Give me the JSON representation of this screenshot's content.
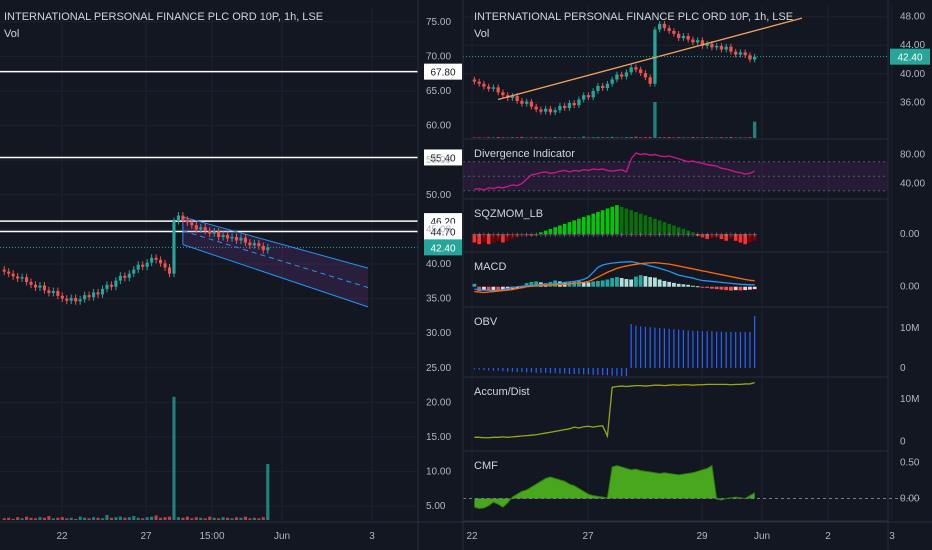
{
  "colors": {
    "background": "#131722",
    "grid": "#1e222d",
    "up": "#26a69a",
    "down": "#ef5350",
    "axis_text": "#b2b5be",
    "title_text": "#d1d4dc",
    "white": "#ffffff",
    "channel": "#2196f3",
    "trend": "#f0a060",
    "divergence": "#c2188b",
    "sqz_green": "#00c805",
    "sqz_dark_green": "#0a6e0a",
    "sqz_red": "#ff2d2d",
    "sqz_maroon": "#800000",
    "macd_line": "#2196f3",
    "signal_line": "#ff6d00",
    "obv": "#2962ff",
    "accum": "#9aa617",
    "cmf_fill": "#4caf1e",
    "price_label": "#26a69a"
  },
  "left_panel": {
    "title": "INTERNATIONAL PERSONAL FINANCE PLC ORD 10P, 1h, LSE",
    "subtitle": "Vol",
    "last_price_label": "42.40",
    "y_ticks": [
      "75.00",
      "70.00",
      "65.00",
      "60.00",
      "55.00",
      "50.00",
      "45.00",
      "40.00",
      "35.00",
      "30.00",
      "25.00",
      "20.00",
      "15.00",
      "10.00",
      "5.00"
    ],
    "x_ticks": [
      "22",
      "27",
      "15:00",
      "Jun",
      "3"
    ],
    "horizontal_levels": [
      {
        "value": 67.8,
        "label": "67.80"
      },
      {
        "value": 55.4,
        "label": "55.40"
      },
      {
        "value": 46.2,
        "label": "46.20"
      },
      {
        "value": 44.7,
        "label": "44.70"
      }
    ]
  },
  "right_panel": {
    "title": "INTERNATIONAL PERSONAL FINANCE PLC ORD 10P, 1h, LSE",
    "subtitle": "Vol",
    "last_price_label": "42.40",
    "x_ticks": [
      "22",
      "27",
      "29",
      "Jun",
      "2",
      "3"
    ],
    "panes": [
      {
        "name": "Price",
        "y_ticks": [
          "48.00",
          "44.00",
          "40.00",
          "36.00"
        ]
      },
      {
        "name": "Divergence Indicator",
        "y_ticks": [
          "80.00",
          "40.00"
        ]
      },
      {
        "name": "SQZMOM_LB",
        "y_ticks": [
          "0.00"
        ]
      },
      {
        "name": "MACD",
        "y_ticks": [
          "0.00"
        ]
      },
      {
        "name": "OBV",
        "y_ticks": [
          "10M",
          "0"
        ]
      },
      {
        "name": "Accum/Dist",
        "y_ticks": [
          "10M",
          "0"
        ]
      },
      {
        "name": "CMF",
        "y_ticks": [
          "0.50",
          "0.00"
        ]
      }
    ]
  },
  "chart_data": [
    {
      "type": "candlestick",
      "title": "INTERNATIONAL PERSONAL FINANCE PLC ORD 10P, 1h, LSE",
      "ylim": [
        3,
        77
      ],
      "last_price": 42.4,
      "close": [
        38.9,
        38.6,
        38.2,
        37.9,
        38.1,
        37.4,
        37.0,
        36.6,
        36.9,
        36.2,
        35.8,
        36.1,
        35.4,
        35.0,
        34.7,
        35.1,
        34.6,
        34.9,
        35.5,
        35.2,
        35.9,
        35.6,
        36.4,
        37.0,
        36.7,
        37.6,
        38.3,
        38.0,
        38.6,
        39.2,
        39.9,
        39.6,
        40.2,
        40.9,
        40.6,
        40.1,
        39.5,
        38.6,
        46.2,
        47.0,
        46.4,
        46.0,
        45.6,
        45.0,
        45.3,
        44.8,
        44.4,
        44.7,
        43.9,
        44.2,
        43.7,
        43.9,
        43.4,
        43.8,
        43.1,
        42.7,
        43.0,
        42.6,
        42.0,
        42.4
      ],
      "volume": [
        0.3,
        0.4,
        0.2,
        0.5,
        0.3,
        0.6,
        0.4,
        0.3,
        0.5,
        0.4,
        0.7,
        0.3,
        0.4,
        0.5,
        0.3,
        0.4,
        0.2,
        0.6,
        0.4,
        0.3,
        0.5,
        0.4,
        0.3,
        0.9,
        0.4,
        0.5,
        0.6,
        0.4,
        0.5,
        0.7,
        0.4,
        0.3,
        0.5,
        0.6,
        0.8,
        0.4,
        0.5,
        0.6,
        22.0,
        0.5,
        0.4,
        0.6,
        0.3,
        0.5,
        0.4,
        0.3,
        0.6,
        0.4,
        0.3,
        0.5,
        0.4,
        0.3,
        0.5,
        0.4,
        0.6,
        0.3,
        0.4,
        0.3,
        0.5,
        10.0
      ],
      "horizontal_levels": [
        67.8,
        55.4,
        46.2,
        44.7
      ],
      "channel": {
        "start_x_index": 40,
        "upper": [
          46.8,
          39.4
        ],
        "lower": [
          42.8,
          33.8
        ]
      }
    },
    {
      "type": "line",
      "title": "Divergence Indicator",
      "ylim": [
        20,
        100
      ],
      "values": [
        32,
        33,
        31,
        34,
        33,
        35,
        34,
        36,
        38,
        37,
        40,
        46,
        52,
        53,
        55,
        56,
        54,
        55,
        57,
        58,
        56,
        58,
        57,
        59,
        58,
        60,
        59,
        60,
        58,
        57,
        58,
        59,
        56,
        74,
        82,
        80,
        81,
        79,
        80,
        78,
        77,
        78,
        76,
        74,
        72,
        70,
        71,
        69,
        68,
        66,
        65,
        64,
        61,
        60,
        58,
        56,
        55,
        53,
        54,
        57
      ]
    },
    {
      "type": "bar",
      "title": "SQZMOM_LB",
      "ylim": [
        -0.1,
        0.2
      ],
      "values": [
        -0.05,
        -0.06,
        -0.05,
        -0.06,
        -0.05,
        -0.04,
        -0.05,
        -0.04,
        -0.03,
        -0.02,
        -0.01,
        -0.005,
        -0.01,
        -0.005,
        0.01,
        0.02,
        0.03,
        0.04,
        0.05,
        0.06,
        0.07,
        0.08,
        0.09,
        0.1,
        0.11,
        0.12,
        0.13,
        0.14,
        0.15,
        0.16,
        0.17,
        0.16,
        0.15,
        0.14,
        0.13,
        0.12,
        0.11,
        0.1,
        0.09,
        0.08,
        0.07,
        0.06,
        0.05,
        0.04,
        0.03,
        0.02,
        0.01,
        -0.01,
        -0.02,
        -0.03,
        -0.025,
        -0.02,
        -0.03,
        -0.04,
        -0.03,
        -0.04,
        -0.05,
        -0.06,
        -0.05,
        -0.04
      ]
    },
    {
      "type": "bar",
      "title": "MACD",
      "ylim": [
        -0.8,
        1.4
      ],
      "histogram": [
        0.12,
        -0.18,
        -0.13,
        -0.15,
        -0.14,
        -0.16,
        -0.12,
        -0.11,
        -0.1,
        -0.08,
        -0.06,
        0.15,
        0.2,
        0.22,
        0.18,
        0.14,
        0.2,
        0.26,
        0.22,
        0.18,
        0.2,
        0.22,
        0.24,
        0.2,
        0.18,
        0.22,
        0.24,
        0.26,
        0.3,
        0.36,
        0.4,
        0.36,
        0.32,
        0.3,
        0.42,
        0.48,
        0.44,
        0.4,
        0.38,
        0.3,
        0.24,
        0.2,
        0.16,
        0.12,
        0.1,
        0.08,
        0.04,
        0.02,
        -0.02,
        -0.05,
        -0.08,
        -0.1,
        -0.12,
        -0.14,
        -0.16,
        -0.14,
        -0.15,
        -0.14,
        -0.12,
        -0.1
      ],
      "macd": [
        -0.1,
        -0.12,
        -0.14,
        -0.15,
        -0.16,
        -0.14,
        -0.12,
        -0.08,
        -0.04,
        0.0,
        0.02,
        0.04,
        0.05,
        0.07,
        0.09,
        0.1,
        0.1,
        0.12,
        0.14,
        0.18,
        0.2,
        0.22,
        0.26,
        0.3,
        0.4,
        0.6,
        0.8,
        0.9,
        0.95,
        0.98,
        1.0,
        1.02,
        1.03,
        1.04,
        1.0,
        0.96,
        0.92,
        0.86,
        0.82,
        0.76,
        0.7,
        0.64,
        0.56,
        0.48,
        0.44,
        0.4,
        0.36,
        0.3,
        0.26,
        0.24,
        0.22,
        0.2,
        0.18,
        0.16,
        0.14,
        0.12,
        0.1,
        0.09,
        0.08,
        0.08
      ],
      "signal": [
        -0.2,
        -0.22,
        -0.24,
        -0.22,
        -0.2,
        -0.18,
        -0.16,
        -0.14,
        -0.12,
        -0.08,
        -0.04,
        0.0,
        0.02,
        0.03,
        0.05,
        0.06,
        0.07,
        0.08,
        0.09,
        0.1,
        0.12,
        0.14,
        0.16,
        0.18,
        0.22,
        0.3,
        0.4,
        0.5,
        0.6,
        0.68,
        0.76,
        0.82,
        0.86,
        0.9,
        0.93,
        0.96,
        0.98,
        0.99,
        1.0,
        0.98,
        0.96,
        0.94,
        0.9,
        0.86,
        0.82,
        0.78,
        0.74,
        0.7,
        0.66,
        0.62,
        0.58,
        0.54,
        0.5,
        0.46,
        0.42,
        0.38,
        0.34,
        0.3,
        0.27,
        0.25
      ]
    },
    {
      "type": "bar",
      "title": "OBV",
      "ylim": [
        -2,
        15
      ],
      "values": [
        -0.3,
        -0.4,
        -0.5,
        -0.6,
        -0.7,
        -0.7,
        -0.8,
        -0.9,
        -0.9,
        -1.0,
        -1.0,
        -1.1,
        -1.1,
        -1.2,
        -1.2,
        -1.2,
        -1.3,
        -1.3,
        -1.4,
        -1.4,
        -1.5,
        -1.5,
        -1.5,
        -1.6,
        -1.6,
        -1.7,
        -1.7,
        -1.8,
        -1.8,
        -1.9,
        -1.9,
        -2.0,
        -2.0,
        11.0,
        10.6,
        10.4,
        10.3,
        10.2,
        10.1,
        10.0,
        9.9,
        9.8,
        9.7,
        9.6,
        9.5,
        9.4,
        9.3,
        9.3,
        9.2,
        9.2,
        9.2,
        9.1,
        9.1,
        9.0,
        9.0,
        9.0,
        9.0,
        9.0,
        9.0,
        13.0
      ]
    },
    {
      "type": "line",
      "title": "Accum/Dist",
      "ylim": [
        -2,
        15
      ],
      "values": [
        1.0,
        1.0,
        0.9,
        0.9,
        1.0,
        1.0,
        1.1,
        1.0,
        1.1,
        1.2,
        1.3,
        1.4,
        1.5,
        1.6,
        1.8,
        2.0,
        2.2,
        2.4,
        2.6,
        2.8,
        3.0,
        3.4,
        3.2,
        3.5,
        3.6,
        3.4,
        3.6,
        3.7,
        1.3,
        12.8,
        13.0,
        13.1,
        13.0,
        13.1,
        13.2,
        13.2,
        13.1,
        13.2,
        13.3,
        13.3,
        13.2,
        13.3,
        13.4,
        13.3,
        13.4,
        13.4,
        13.3,
        13.4,
        13.4,
        13.5,
        13.5,
        13.5,
        13.5,
        13.5,
        13.4,
        13.5,
        13.5,
        13.6,
        13.6,
        13.9
      ]
    },
    {
      "type": "area",
      "title": "CMF",
      "ylim": [
        -0.3,
        0.65
      ],
      "values": [
        -0.12,
        -0.14,
        -0.13,
        -0.1,
        -0.05,
        -0.08,
        -0.12,
        -0.06,
        0.02,
        0.06,
        0.1,
        0.12,
        0.16,
        0.2,
        0.24,
        0.28,
        0.3,
        0.28,
        0.26,
        0.24,
        0.2,
        0.18,
        0.14,
        0.1,
        0.06,
        0.04,
        0.03,
        0.02,
        0.01,
        0.44,
        0.46,
        0.44,
        0.42,
        0.4,
        0.41,
        0.39,
        0.38,
        0.37,
        0.36,
        0.35,
        0.36,
        0.35,
        0.34,
        0.33,
        0.34,
        0.35,
        0.36,
        0.38,
        0.4,
        0.42,
        0.46,
        -0.01,
        -0.02,
        0.0,
        0.01,
        0.02,
        0.01,
        0.0,
        0.04,
        0.08
      ]
    }
  ]
}
